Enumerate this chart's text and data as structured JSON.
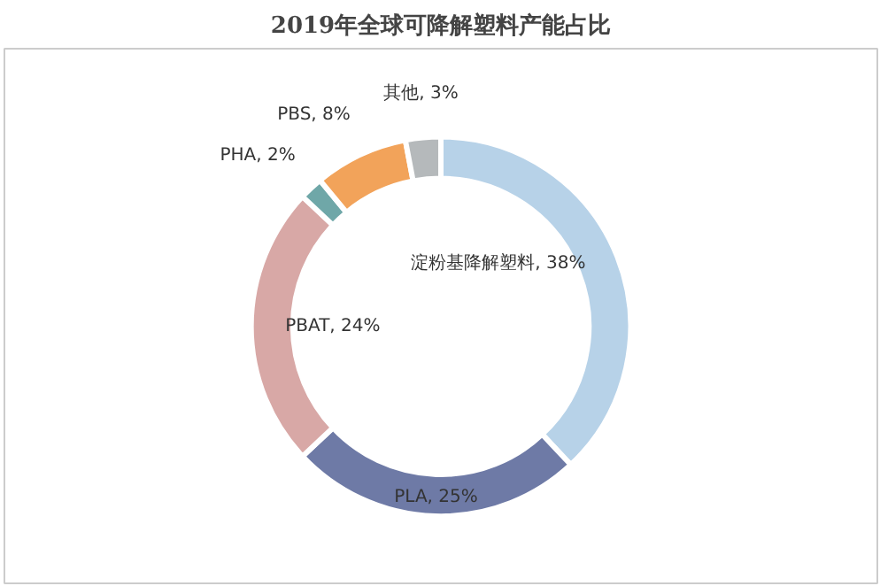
{
  "chart_data": {
    "type": "donut",
    "title": "2019年全球可降解塑料产能占比",
    "categories": [
      "淀粉基降解塑料",
      "PLA",
      "PBAT",
      "PHA",
      "PBS",
      "其他"
    ],
    "values": [
      38,
      25,
      24,
      2,
      8,
      3
    ],
    "value_labels": [
      "38%",
      "25%",
      "24%",
      "2%",
      "8%",
      "3%"
    ],
    "colors": [
      "#b7d2e8",
      "#6e7aa6",
      "#d8a8a6",
      "#6fa7a8",
      "#f2a35a",
      "#b5b9bb"
    ]
  }
}
